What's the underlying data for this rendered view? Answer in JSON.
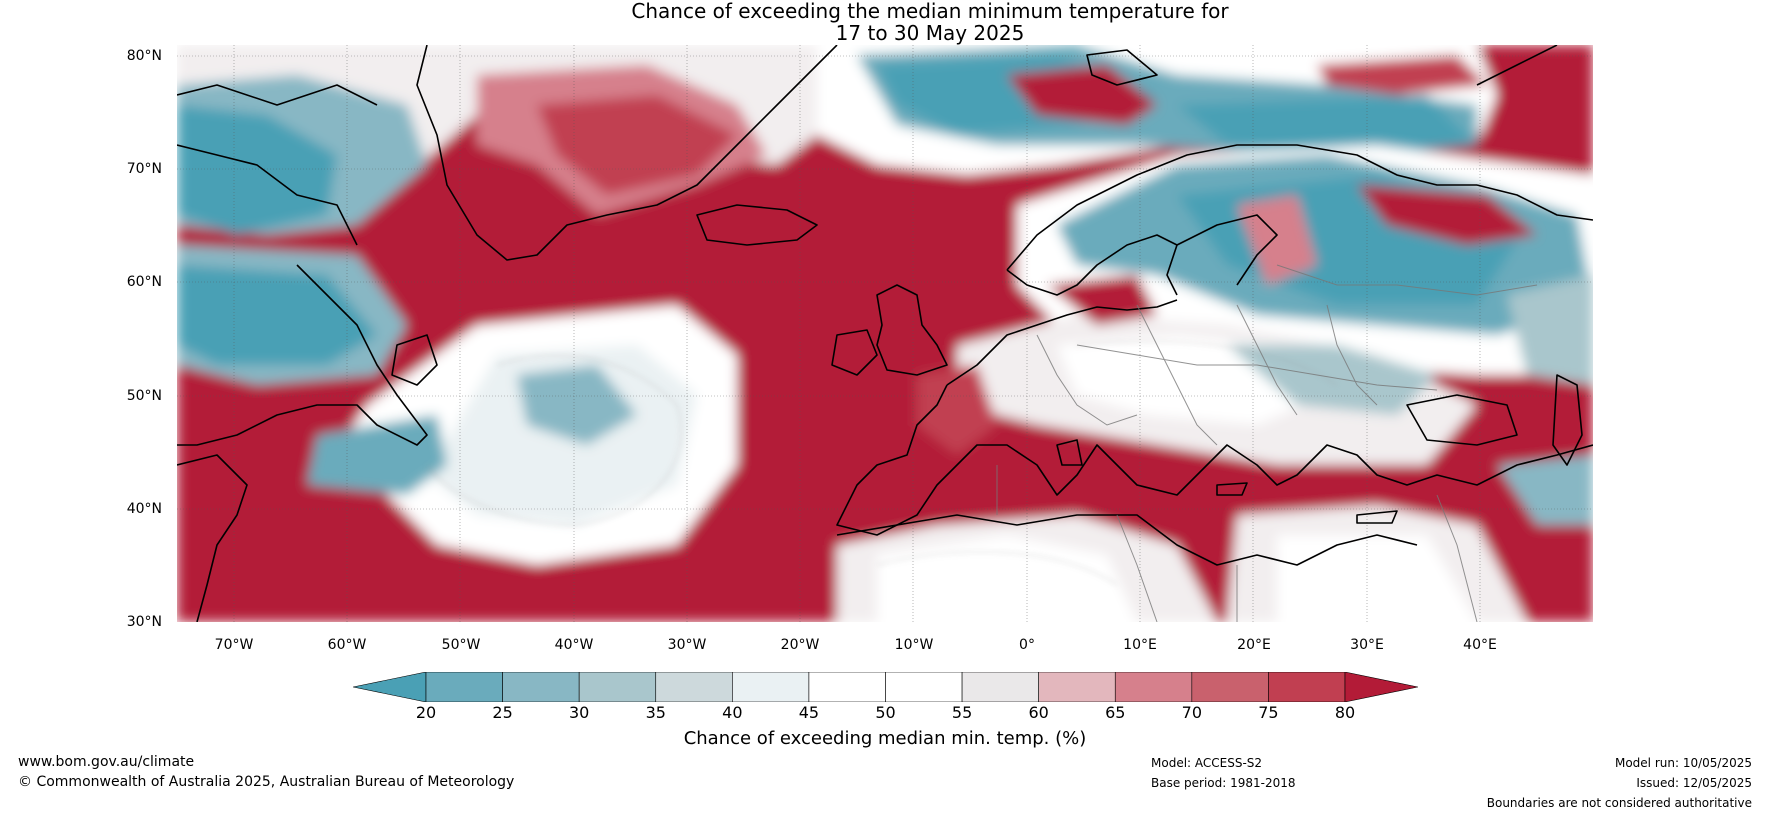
{
  "title_line1": "Chance of exceeding the median minimum temperature for",
  "title_line2": "17 to 30 May 2025",
  "lat_labels": [
    "80°N",
    "70°N",
    "60°N",
    "50°N",
    "40°N",
    "30°N"
  ],
  "lon_labels": [
    "70°W",
    "60°W",
    "50°W",
    "40°W",
    "30°W",
    "20°W",
    "10°W",
    "0°",
    "10°E",
    "20°E",
    "30°E",
    "40°E"
  ],
  "colorbar": {
    "ticks": [
      "20",
      "25",
      "30",
      "35",
      "40",
      "45",
      "50",
      "55",
      "60",
      "65",
      "70",
      "75",
      "80"
    ],
    "colors": [
      "#4aa0b5",
      "#6aabbc",
      "#88b7c4",
      "#a9c6cc",
      "#cdd9dc",
      "#eaf1f3",
      "#ffffff",
      "#ffffff",
      "#eae8e9",
      "#e3b7bd",
      "#d6808c",
      "#c9616d",
      "#c13f51",
      "#b31b37"
    ],
    "label": "Chance of exceeding median min. temp. (%)"
  },
  "footer": {
    "website": "www.bom.gov.au/climate",
    "copyright": "© Commonwealth of Australia 2025, Australian Bureau of Meteorology",
    "model": "Model: ACCESS-S2",
    "base_period": "Base period: 1981-2018",
    "model_run": "Model run: 10/05/2025",
    "issued": "Issued: 12/05/2025",
    "disclaimer": "Boundaries are not considered authoritative"
  }
}
